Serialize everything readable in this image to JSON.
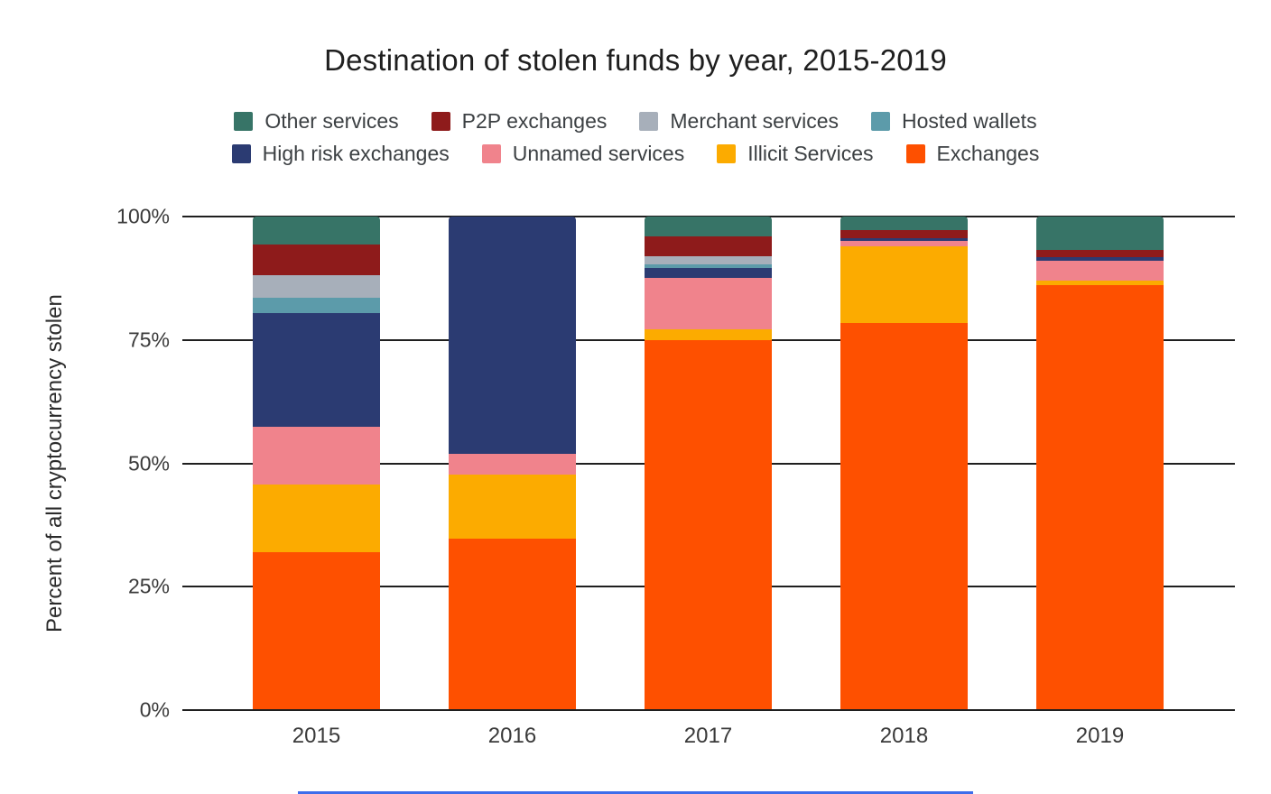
{
  "chart_data": {
    "type": "bar",
    "stacked": true,
    "title": "Destination of stolen funds by year, 2015-2019",
    "xlabel": "",
    "ylabel": "Percent of all cryptocurrency stolen",
    "categories": [
      "2015",
      "2016",
      "2017",
      "2018",
      "2019"
    ],
    "y_ticks": [
      "0%",
      "25%",
      "50%",
      "75%",
      "100%"
    ],
    "ylim": [
      0,
      100
    ],
    "grid": true,
    "legend_position": "top",
    "legend_rows": [
      [
        "Other services",
        "P2P exchanges",
        "Merchant services",
        "Hosted wallets"
      ],
      [
        "High risk exchanges",
        "Unnamed services",
        "Illicit Services",
        "Exchanges"
      ]
    ],
    "series": [
      {
        "name": "Exchanges",
        "color": "#fe5000",
        "values": [
          32,
          34.8,
          75,
          78.5,
          86.1
        ]
      },
      {
        "name": "Illicit Services",
        "color": "#fcab00",
        "values": [
          13.7,
          13,
          2.1,
          15.4,
          1
        ]
      },
      {
        "name": "Unnamed services",
        "color": "#f0838c",
        "values": [
          11.8,
          4.2,
          10.4,
          1.2,
          3.9
        ]
      },
      {
        "name": "High risk exchanges",
        "color": "#2b3b72",
        "values": [
          23,
          48,
          2,
          0.6,
          0.8
        ]
      },
      {
        "name": "Hosted wallets",
        "color": "#5c9baa",
        "values": [
          3.1,
          0,
          0.8,
          0,
          0
        ]
      },
      {
        "name": "Merchant services",
        "color": "#a7afba",
        "values": [
          4.6,
          0,
          1.7,
          0,
          0
        ]
      },
      {
        "name": "P2P exchanges",
        "color": "#8e1b1b",
        "values": [
          6.2,
          0,
          4,
          1.5,
          1.5
        ]
      },
      {
        "name": "Other services",
        "color": "#377467",
        "values": [
          5.6,
          0,
          4,
          2.8,
          6.7
        ]
      }
    ]
  },
  "style": {
    "gridline_color": "#1f1f1f",
    "accent_line_color": "#3d6deb"
  }
}
